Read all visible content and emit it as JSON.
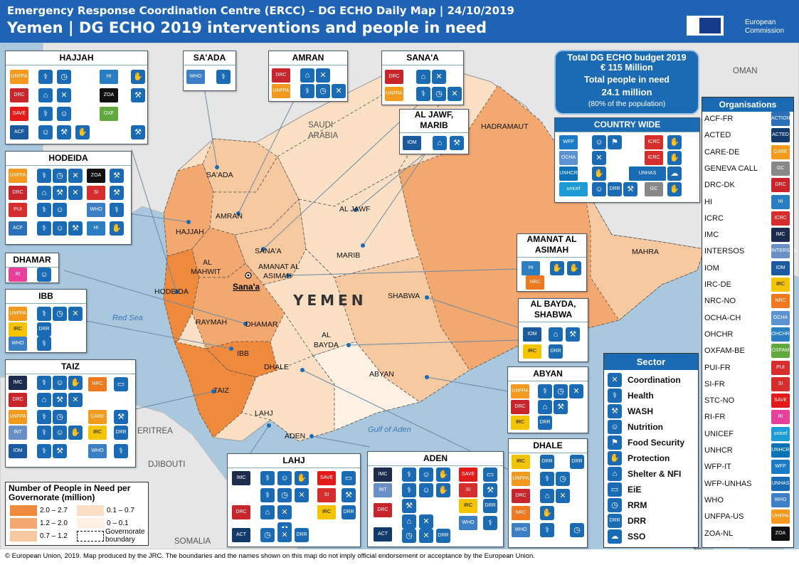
{
  "header": {
    "subtitle": "Emergency Response Coordination Centre (ERCC) – DG ECHO Daily Map | 24/10/2019",
    "title": "Yemen | DG ECHO 2019 interventions and people in need",
    "logo_line1": "European",
    "logo_line2": "Commission"
  },
  "colors": {
    "sea": "#a9c7dd",
    "land": "#e6e6e6",
    "tier1": "#ef8a3c",
    "tier2": "#f3a86f",
    "tier3": "#f7c9a0",
    "tier4": "#fbe0c5",
    "tier5": "#fdf1e3",
    "accent": "#1a6bb3"
  },
  "map_labels": {
    "countries": [
      "OMAN",
      "SAUDI",
      "ARABIA",
      "ERITREA",
      "DJIBOUTI",
      "SOMALIA"
    ],
    "seas": [
      "Red Sea",
      "Gulf of Aden"
    ],
    "country_name": "YEMEN",
    "capital": "Sana'a",
    "governorates": [
      "SA'ADA",
      "AMRAN",
      "HAJJAH",
      "AL JAWF",
      "HADRAMAUT",
      "MARIB",
      "SANA'A",
      "AL",
      "MAHWIT",
      "AMANAT AL",
      "ASIMAH",
      "HODEIDA",
      "MAHRA",
      "RAYMAH",
      "DHAMAR",
      "SHABWA",
      "IBB",
      "AL",
      "BAYDA",
      "DHALE",
      "ABYAN",
      "TAIZ",
      "LAHJ",
      "ADEN"
    ]
  },
  "budget": {
    "line1": "Total DG ECHO budget 2019",
    "line2": "€ 115 Million",
    "line3": "Total people in need",
    "line4": "24.1 million",
    "line5": "(80% of the population)"
  },
  "panels": {
    "hajjah": "HAJJAH",
    "saada": "SA'ADA",
    "amran": "AMRAN",
    "sanaa": "SANA'A",
    "aljawf1": "AL JAWF,",
    "aljawf2": "MARIB",
    "countrywide": "COUNTRY WIDE",
    "hodeida": "HODEIDA",
    "dhamar": "DHAMAR",
    "ibb": "IBB",
    "taiz": "TAIZ",
    "amanat1": "AMANAT AL",
    "amanat2": "ASIMAH",
    "albayda1": "AL BAYDA,",
    "albayda2": "SHABWA",
    "abyan": "ABYAN",
    "dhale": "DHALE",
    "lahj": "LAHJ",
    "aden": "ADEN"
  },
  "sector": {
    "title": "Sector",
    "items": [
      {
        "label": "Coordination",
        "icon": "coordination-icon",
        "glyph": "✕"
      },
      {
        "label": "Health",
        "icon": "health-icon",
        "glyph": "⚕"
      },
      {
        "label": "WASH",
        "icon": "wash-icon",
        "glyph": "⚒"
      },
      {
        "label": "Nutrition",
        "icon": "nutrition-icon",
        "glyph": "☺"
      },
      {
        "label": "Food Security",
        "icon": "food-security-icon",
        "glyph": "⚑"
      },
      {
        "label": "Protection",
        "icon": "protection-icon",
        "glyph": "✋"
      },
      {
        "label": "Shelter & NFI",
        "icon": "shelter-icon",
        "glyph": "⌂"
      },
      {
        "label": "EiE",
        "icon": "education-icon",
        "glyph": "▭"
      },
      {
        "label": "RRM",
        "icon": "rrm-icon",
        "glyph": "◷"
      },
      {
        "label": "DRR",
        "icon": "drr-icon",
        "glyph": "DRR"
      },
      {
        "label": "SSO",
        "icon": "sso-icon",
        "glyph": "☁"
      }
    ]
  },
  "organisations": {
    "title": "Organisations",
    "items": [
      {
        "name": "ACF-FR",
        "logo": "ACTION FAIM",
        "color": "#2a6fb7"
      },
      {
        "name": "ACTED",
        "logo": "ACTED",
        "color": "#123a6b"
      },
      {
        "name": "CARE-DE",
        "logo": "CARE",
        "color": "#f29a1b"
      },
      {
        "name": "GENEVA CALL",
        "logo": "GC",
        "color": "#888888"
      },
      {
        "name": "DRC-DK",
        "logo": "DRC",
        "color": "#c9252c"
      },
      {
        "name": "HI",
        "logo": "HI",
        "color": "#2b7ec1"
      },
      {
        "name": "ICRC",
        "logo": "ICRC",
        "color": "#d62d2d"
      },
      {
        "name": "IMC",
        "logo": "IMC",
        "color": "#1d2b4c"
      },
      {
        "name": "INTERSOS",
        "logo": "INTERSOS",
        "color": "#6a8fc7"
      },
      {
        "name": "IOM",
        "logo": "IOM",
        "color": "#1c5aa0"
      },
      {
        "name": "IRC-DE",
        "logo": "IRC",
        "color": "#f4c400"
      },
      {
        "name": "NRC-NO",
        "logo": "NRC",
        "color": "#f0781e"
      },
      {
        "name": "OCHA-CH",
        "logo": "OCHA",
        "color": "#5b92d1"
      },
      {
        "name": "OHCHR",
        "logo": "OHCHR",
        "color": "#2b7ec1"
      },
      {
        "name": "OXFAM-BE",
        "logo": "OXFAM",
        "color": "#62a83e"
      },
      {
        "name": "PUI-FR",
        "logo": "PUI",
        "color": "#d62d2d"
      },
      {
        "name": "SI-FR",
        "logo": "SI",
        "color": "#d62d2d"
      },
      {
        "name": "STC-NO",
        "logo": "SAVE",
        "color": "#e21a1a"
      },
      {
        "name": "RI-FR",
        "logo": "RI",
        "color": "#e6409b"
      },
      {
        "name": "UNICEF",
        "logo": "unicef",
        "color": "#1c9bd7"
      },
      {
        "name": "UNHCR",
        "logo": "UNHCR",
        "color": "#0b72b8"
      },
      {
        "name": "WFP-IT",
        "logo": "WFP",
        "color": "#1c7bc7"
      },
      {
        "name": "WFP-UNHAS",
        "logo": "UNHAS",
        "color": "#1a6bb3"
      },
      {
        "name": "WHO",
        "logo": "WHO",
        "color": "#3c7fc4"
      },
      {
        "name": "UNFPA-US",
        "logo": "UNFPA",
        "color": "#f39a1e"
      },
      {
        "name": "ZOA-NL",
        "logo": "ZOA",
        "color": "#111111"
      }
    ]
  },
  "legend": {
    "title": "Number of People in Need per Governorate (million)",
    "r1": "2.0 – 2.7",
    "r2": "1.2 – 2.0",
    "r3": "0.7 – 1.2",
    "r4": "0.1 – 0.7",
    "r5": "0 – 0.1",
    "r6": "Governorate boundary"
  },
  "footer": {
    "text": "© European Union, 2019. Map produced by the JRC. The boundaries and the names shown on this map do not imply official endorsement or acceptance by the European Union."
  },
  "scale": {
    "t0": "0",
    "t1": "100",
    "t2": "200",
    "unit": "km"
  }
}
